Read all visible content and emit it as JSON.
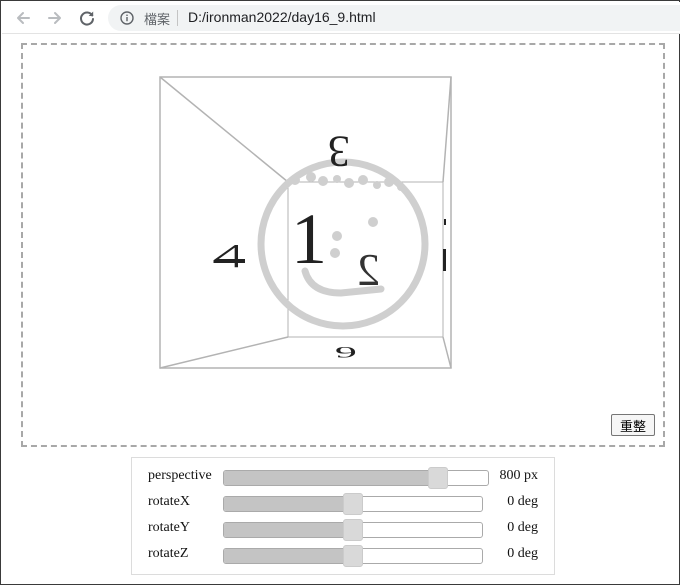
{
  "browser": {
    "protocol_label": "檔案",
    "url": "D:/ironman2022/day16_9.html"
  },
  "stage": {
    "face_labels": {
      "front": "1",
      "right_face_small": "2",
      "top": "3",
      "left": "4",
      "bottom": "6"
    },
    "reset_label": "重整"
  },
  "controls": [
    {
      "label": "perspective",
      "value": "800",
      "unit": "px",
      "fraction": 0.81
    },
    {
      "label": "rotateX",
      "value": "0",
      "unit": "deg",
      "fraction": 0.5
    },
    {
      "label": "rotateY",
      "value": "0",
      "unit": "deg",
      "fraction": 0.5
    },
    {
      "label": "rotateZ",
      "value": "0",
      "unit": "deg",
      "fraction": 0.5
    }
  ],
  "colors": {
    "cube_edges": "#b3b3b3",
    "watermark": "#cfcfcf",
    "digits": "#222222"
  }
}
